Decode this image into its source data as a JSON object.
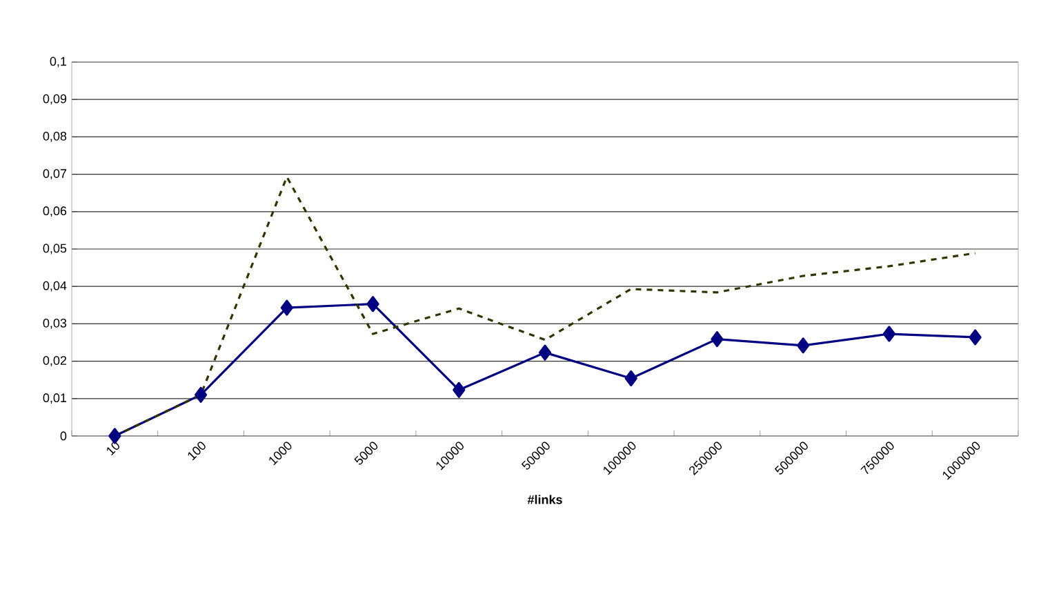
{
  "chart_data": {
    "type": "line",
    "xlabel": "#links",
    "categories": [
      "10",
      "100",
      "1000",
      "5000",
      "10000",
      "50000",
      "100000",
      "250000",
      "500000",
      "750000",
      "1000000"
    ],
    "series": [
      {
        "color": "#000080",
        "marker": "diamond",
        "line_style": "solid",
        "values": [
          0,
          0.011,
          0.0343,
          0.0353,
          0.0123,
          0.0223,
          0.0154,
          0.0259,
          0.0242,
          0.0273,
          0.0264
        ]
      },
      {
        "color": "#333300",
        "marker": "none",
        "line_style": "dashed",
        "values": [
          0,
          0.011,
          0.0693,
          0.0273,
          0.0341,
          0.0257,
          0.0393,
          0.0384,
          0.0428,
          0.0454,
          0.0489
        ]
      }
    ],
    "ylim": [
      0,
      0.1
    ],
    "yticks": [
      0,
      {
        "value": 0.01,
        "label": "0,01"
      },
      {
        "value": 0.02,
        "label": "0,02"
      },
      {
        "value": 0.03,
        "label": "0,03"
      },
      {
        "value": 0.04,
        "label": "0,04"
      },
      {
        "value": 0.05,
        "label": "0,05"
      },
      {
        "value": 0.06,
        "label": "0,06"
      },
      {
        "value": 0.07,
        "label": "0,07"
      },
      {
        "value": 0.08,
        "label": "0,08"
      },
      {
        "value": 0.09,
        "label": "0,09"
      },
      {
        "value": 0.1,
        "label": "0,1"
      }
    ],
    "grid": "y"
  }
}
